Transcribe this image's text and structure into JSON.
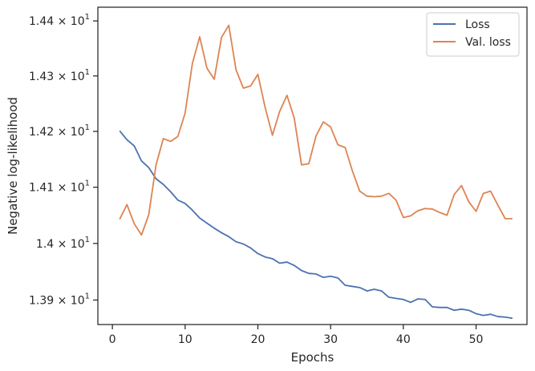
{
  "chart_data": {
    "type": "line",
    "xlabel": "Epochs",
    "ylabel": "Negative log-likelihood",
    "xlim": [
      -2,
      57
    ],
    "ylim": [
      13.857,
      14.425
    ],
    "y_scale": "log",
    "x_ticks": [
      0,
      10,
      20,
      30,
      40,
      50
    ],
    "y_ticks": [
      {
        "value": 13.9,
        "label_base": "1.39",
        "label_mult": "×",
        "label_exp_base": "10",
        "label_exp": "1"
      },
      {
        "value": 14.0,
        "label_base": "1.4",
        "label_mult": "×",
        "label_exp_base": "10",
        "label_exp": "1"
      },
      {
        "value": 14.1,
        "label_base": "1.41",
        "label_mult": "×",
        "label_exp_base": "10",
        "label_exp": "1"
      },
      {
        "value": 14.2,
        "label_base": "1.42",
        "label_mult": "×",
        "label_exp_base": "10",
        "label_exp": "1"
      },
      {
        "value": 14.3,
        "label_base": "1.43",
        "label_mult": "×",
        "label_exp_base": "10",
        "label_exp": "1"
      },
      {
        "value": 14.4,
        "label_base": "1.44",
        "label_mult": "×",
        "label_exp_base": "10",
        "label_exp": "1"
      }
    ],
    "grid": false,
    "legend_position": "top-right",
    "x": [
      1,
      2,
      3,
      4,
      5,
      6,
      7,
      8,
      9,
      10,
      11,
      12,
      13,
      14,
      15,
      16,
      17,
      18,
      19,
      20,
      21,
      22,
      23,
      24,
      25,
      26,
      27,
      28,
      29,
      30,
      31,
      32,
      33,
      34,
      35,
      36,
      37,
      38,
      39,
      40,
      41,
      42,
      43,
      44,
      45,
      46,
      47,
      48,
      49,
      50,
      51,
      52,
      53,
      54,
      55
    ],
    "series": [
      {
        "name": "Loss",
        "color": "#4c72b0",
        "values": [
          14.201,
          14.185,
          14.174,
          14.147,
          14.135,
          14.115,
          14.105,
          14.092,
          14.077,
          14.071,
          14.059,
          14.045,
          14.036,
          14.027,
          14.019,
          14.012,
          14.003,
          13.999,
          13.992,
          13.982,
          13.976,
          13.973,
          13.965,
          13.967,
          13.961,
          13.952,
          13.947,
          13.946,
          13.94,
          13.942,
          13.939,
          13.926,
          13.924,
          13.922,
          13.916,
          13.919,
          13.916,
          13.905,
          13.903,
          13.901,
          13.896,
          13.902,
          13.901,
          13.888,
          13.887,
          13.887,
          13.882,
          13.884,
          13.882,
          13.876,
          13.873,
          13.875,
          13.871,
          13.87,
          13.868
        ]
      },
      {
        "name": "Val. loss",
        "color": "#dd8452",
        "values": [
          14.043,
          14.069,
          14.035,
          14.015,
          14.051,
          14.14,
          14.187,
          14.182,
          14.191,
          14.233,
          14.323,
          14.371,
          14.314,
          14.294,
          14.37,
          14.392,
          14.311,
          14.278,
          14.282,
          14.303,
          14.243,
          14.193,
          14.236,
          14.265,
          14.224,
          14.14,
          14.142,
          14.192,
          14.217,
          14.208,
          14.176,
          14.171,
          14.129,
          14.093,
          14.084,
          14.083,
          14.084,
          14.089,
          14.077,
          14.046,
          14.049,
          14.058,
          14.062,
          14.061,
          14.055,
          14.05,
          14.087,
          14.103,
          14.074,
          14.057,
          14.089,
          14.093,
          14.068,
          14.044,
          14.044
        ]
      }
    ]
  }
}
